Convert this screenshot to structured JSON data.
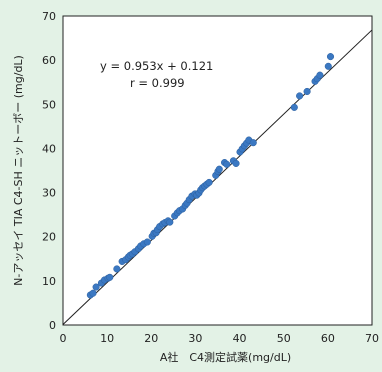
{
  "chart_data": {
    "type": "scatter",
    "xlabel": "A社　C4測定試薬(mg/dL)",
    "ylabel": "N-アッセイ TIA C4-SH ニットーボー (mg/dL)",
    "xlim": [
      0,
      70
    ],
    "ylim": [
      0,
      70
    ],
    "xticks": [
      "0",
      "10",
      "20",
      "30",
      "40",
      "50",
      "60",
      "70"
    ],
    "yticks": [
      "0",
      "10",
      "20",
      "30",
      "40",
      "50",
      "60",
      "70"
    ],
    "grid": false,
    "annotations": {
      "equation": "y = 0.953x + 0.121",
      "r": "r = 0.999"
    },
    "regression": {
      "slope": 0.953,
      "intercept": 0.121
    },
    "series": [
      {
        "color": "#3b78c2",
        "points": [
          [
            6.2,
            6.8
          ],
          [
            6.8,
            7.2
          ],
          [
            7.5,
            8.6
          ],
          [
            8.7,
            9.5
          ],
          [
            9.4,
            10.2
          ],
          [
            10.2,
            10.6
          ],
          [
            10.6,
            10.8
          ],
          [
            12.2,
            12.7
          ],
          [
            13.4,
            14.4
          ],
          [
            14.2,
            14.8
          ],
          [
            14.8,
            15.4
          ],
          [
            15.2,
            15.8
          ],
          [
            15.7,
            16.1
          ],
          [
            16.3,
            16.6
          ],
          [
            17.1,
            17.3
          ],
          [
            17.6,
            17.9
          ],
          [
            18.3,
            18.4
          ],
          [
            19.1,
            18.8
          ],
          [
            20.2,
            20.1
          ],
          [
            20.6,
            20.8
          ],
          [
            21.1,
            20.9
          ],
          [
            21.4,
            21.6
          ],
          [
            21.9,
            22.3
          ],
          [
            22.6,
            22.9
          ],
          [
            23.1,
            23.2
          ],
          [
            23.8,
            23.6
          ],
          [
            24.2,
            23.3
          ],
          [
            25.3,
            24.7
          ],
          [
            25.9,
            25.4
          ],
          [
            26.4,
            25.9
          ],
          [
            27.1,
            26.3
          ],
          [
            27.7,
            27.1
          ],
          [
            28.1,
            27.6
          ],
          [
            28.6,
            28.4
          ],
          [
            29.2,
            29.2
          ],
          [
            29.9,
            29.7
          ],
          [
            30.3,
            29.4
          ],
          [
            30.8,
            29.9
          ],
          [
            31.2,
            30.6
          ],
          [
            31.6,
            31.1
          ],
          [
            32.1,
            31.5
          ],
          [
            32.6,
            31.9
          ],
          [
            33.1,
            32.3
          ],
          [
            34.6,
            33.9
          ],
          [
            35.1,
            34.8
          ],
          [
            35.4,
            35.3
          ],
          [
            36.6,
            36.8
          ],
          [
            37.1,
            36.4
          ],
          [
            38.6,
            37.2
          ],
          [
            39.2,
            36.6
          ],
          [
            40.1,
            39.2
          ],
          [
            40.6,
            39.9
          ],
          [
            41.1,
            40.6
          ],
          [
            41.6,
            41.2
          ],
          [
            42.1,
            41.9
          ],
          [
            43.1,
            41.3
          ],
          [
            52.4,
            49.3
          ],
          [
            53.6,
            51.9
          ],
          [
            55.3,
            52.9
          ],
          [
            57.1,
            55.2
          ],
          [
            57.6,
            55.8
          ],
          [
            58.2,
            56.6
          ],
          [
            60.1,
            58.6
          ],
          [
            60.6,
            60.8
          ]
        ]
      }
    ]
  }
}
